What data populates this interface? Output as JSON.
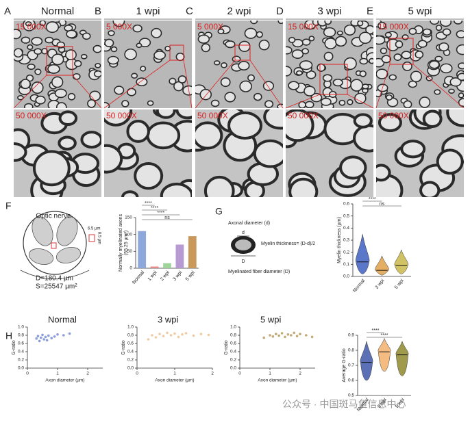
{
  "figure": {
    "panels": [
      {
        "letter": "A",
        "title": "Normal",
        "mag_low": "15 000X",
        "mag_high": "50 000X"
      },
      {
        "letter": "B",
        "title": "1 wpi",
        "mag_low": "5 000X",
        "mag_high": "50 000X"
      },
      {
        "letter": "C",
        "title": "2 wpi",
        "mag_low": "5 000X",
        "mag_high": "50 000X"
      },
      {
        "letter": "D",
        "title": "3 wpi",
        "mag_low": "15 000X",
        "mag_high": "50 000X"
      },
      {
        "letter": "E",
        "title": "5 wpi",
        "mag_low": "15 000X",
        "mag_high": "50 000X"
      }
    ],
    "panel_f": {
      "letter": "F",
      "title": "Optic nerve",
      "box_w": "6.5 µm",
      "box_h": "8.5 µm",
      "diameter": "D=180.4 µm",
      "area": "S=25547 µm²"
    },
    "panel_g": {
      "letter": "G",
      "axon": "Axonal diameter (d)",
      "d": "d",
      "thickness": "Myelin thickness= (D-d)/2",
      "D": "D",
      "fiber": "Myelinated fiber diameter (D)"
    },
    "panel_h": {
      "letter": "H"
    },
    "watermark": "公众号 · 中国斑马鱼信息中心"
  },
  "chart_data": [
    {
      "type": "bar",
      "y_label": [
        "Normally myelinated axons",
        "(55.25 µm²)"
      ],
      "categories": [
        "Normal",
        "1 wpi",
        "2 wpi",
        "3 wpi",
        "5 wpi"
      ],
      "values": [
        110,
        5,
        15,
        70,
        95
      ],
      "colors": [
        "#8fa8dc",
        "#e58a8a",
        "#9fd49a",
        "#b79ad2",
        "#c9985a"
      ],
      "ylim": [
        0,
        150
      ],
      "yticks": [
        0,
        50,
        100,
        150
      ],
      "comparisons": [
        {
          "categories": [
            "Normal",
            "1 wpi"
          ],
          "label": "****"
        },
        {
          "categories": [
            "Normal",
            "2 wpi"
          ],
          "label": "****"
        },
        {
          "categories": [
            "Normal",
            "3 wpi"
          ],
          "label": "****"
        },
        {
          "categories": [
            "Normal",
            "5 wpi"
          ],
          "label": "ns"
        }
      ]
    },
    {
      "type": "violin",
      "y_label": "Myelin thickness (µm)",
      "categories": [
        "Normal",
        "3 wpi",
        "5 wpi"
      ],
      "medians": [
        0.12,
        0.05,
        0.09
      ],
      "mins": [
        0.02,
        0.01,
        0.02
      ],
      "maxs": [
        0.35,
        0.17,
        0.22
      ],
      "colors": [
        "#3d5fbf",
        "#e0a04a",
        "#c9b84a"
      ],
      "ylim": [
        0,
        0.6
      ],
      "yticks": [
        {
          "value": 0,
          "label": "0.0"
        },
        0.1,
        0.2,
        0.3,
        0.4,
        0.5,
        0.6
      ],
      "comparisons": [
        {
          "categories": [
            "Normal",
            "3 wpi"
          ],
          "label": "****"
        },
        {
          "categories": [
            "Normal",
            "5 wpi"
          ],
          "label": "ns"
        }
      ]
    },
    {
      "type": "scatter",
      "title": "Normal",
      "x_label": "Axon diameter (µm)",
      "y_label": "G-ratio",
      "color": "#5a73c8",
      "x": [
        0.3,
        0.35,
        0.4,
        0.45,
        0.5,
        0.55,
        0.6,
        0.65,
        0.7,
        0.8,
        0.9,
        1.0,
        1.2,
        1.4
      ],
      "y": [
        0.72,
        0.78,
        0.66,
        0.74,
        0.81,
        0.7,
        0.76,
        0.68,
        0.79,
        0.73,
        0.77,
        0.82,
        0.8,
        0.84
      ],
      "xlim": [
        0,
        2.5
      ],
      "xticks": [
        0,
        1,
        2
      ],
      "ylim": [
        0,
        1
      ],
      "yticks": [
        {
          "value": 0,
          "label": "0.0"
        },
        0.2,
        0.4,
        0.6,
        0.8,
        {
          "value": 1,
          "label": "1.0"
        }
      ]
    },
    {
      "type": "scatter",
      "title": "3 wpi",
      "x_label": "Axon diameter (µm)",
      "y_label": "G-ratio",
      "color": "#e8b57a",
      "x": [
        0.3,
        0.4,
        0.5,
        0.6,
        0.7,
        0.8,
        0.9,
        1.0,
        1.1,
        1.2,
        1.3,
        1.5,
        1.7,
        1.9
      ],
      "y": [
        0.7,
        0.8,
        0.75,
        0.83,
        0.78,
        0.86,
        0.8,
        0.84,
        0.76,
        0.82,
        0.85,
        0.79,
        0.83,
        0.81
      ],
      "xlim": [
        0,
        2
      ],
      "xticks": [
        0,
        1,
        2
      ],
      "ylim": [
        0,
        1
      ],
      "yticks": [
        {
          "value": 0,
          "label": "0.0"
        },
        0.2,
        0.4,
        0.6,
        0.8,
        {
          "value": 1,
          "label": "1.0"
        }
      ]
    },
    {
      "type": "scatter",
      "title": "5 wpi",
      "x_label": "Axon diameter (µm)",
      "y_label": "G-ratio",
      "color": "#a8843a",
      "x": [
        0.8,
        1.0,
        1.1,
        1.2,
        1.3,
        1.4,
        1.5,
        1.6,
        1.7,
        1.8,
        1.9,
        2.0,
        2.2,
        2.4
      ],
      "y": [
        0.74,
        0.8,
        0.77,
        0.83,
        0.79,
        0.85,
        0.76,
        0.82,
        0.8,
        0.86,
        0.78,
        0.83,
        0.8,
        0.76
      ],
      "xlim": [
        0,
        2.5
      ],
      "xticks": [
        0,
        1,
        2
      ],
      "ylim": [
        0,
        1
      ],
      "yticks": [
        {
          "value": 0,
          "label": "0.0"
        },
        0.2,
        0.4,
        0.6,
        0.8,
        {
          "value": 1,
          "label": "1.0"
        }
      ]
    },
    {
      "type": "violin",
      "y_label": "Average G-ratio",
      "categories": [
        "Normal",
        "3 wpi",
        "5 wpi"
      ],
      "medians": [
        0.72,
        0.79,
        0.77
      ],
      "mins": [
        0.6,
        0.66,
        0.63
      ],
      "maxs": [
        0.86,
        0.88,
        0.86
      ],
      "colors": [
        "#3e57a8",
        "#f2b06b",
        "#8f8a2d"
      ],
      "ylim": [
        0.5,
        0.9
      ],
      "yticks": [
        0.5,
        0.6,
        0.7,
        0.8,
        0.9
      ],
      "comparisons": [
        {
          "categories": [
            "Normal",
            "3 wpi"
          ],
          "label": "****"
        },
        {
          "categories": [
            "Normal",
            "5 wpi"
          ],
          "label": "****"
        }
      ]
    }
  ]
}
